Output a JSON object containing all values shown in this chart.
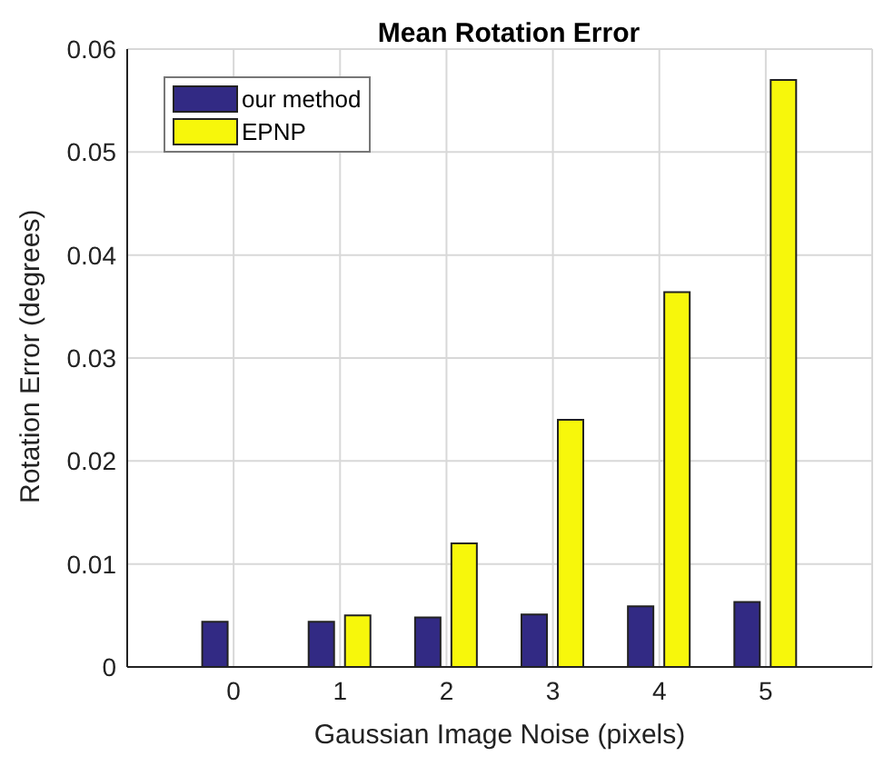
{
  "chart_data": {
    "type": "bar",
    "title": "Mean Rotation Error",
    "xlabel": "Gaussian Image Noise (pixels)",
    "ylabel": "Rotation Error (degrees)",
    "x": [
      0,
      1,
      2,
      3,
      4,
      5
    ],
    "series": [
      {
        "name": "our method",
        "color": "#322a84",
        "values": [
          0.0044,
          0.0044,
          0.0048,
          0.0051,
          0.0059,
          0.0063
        ]
      },
      {
        "name": "EPNP",
        "color": "#f7f70b",
        "values": [
          0,
          0.005,
          0.012,
          0.024,
          0.0364,
          0.057
        ]
      }
    ],
    "xlim": [
      -1,
      6
    ],
    "xticks": [
      {
        "value": -1,
        "label": null
      },
      0,
      1,
      2,
      3,
      4,
      5,
      {
        "value": 6,
        "label": null
      }
    ],
    "ylim": [
      0,
      0.06
    ],
    "yticks": [
      0,
      0.01,
      0.02,
      0.03,
      0.04,
      0.05,
      0.06
    ],
    "grid": true,
    "legend": "top left"
  }
}
